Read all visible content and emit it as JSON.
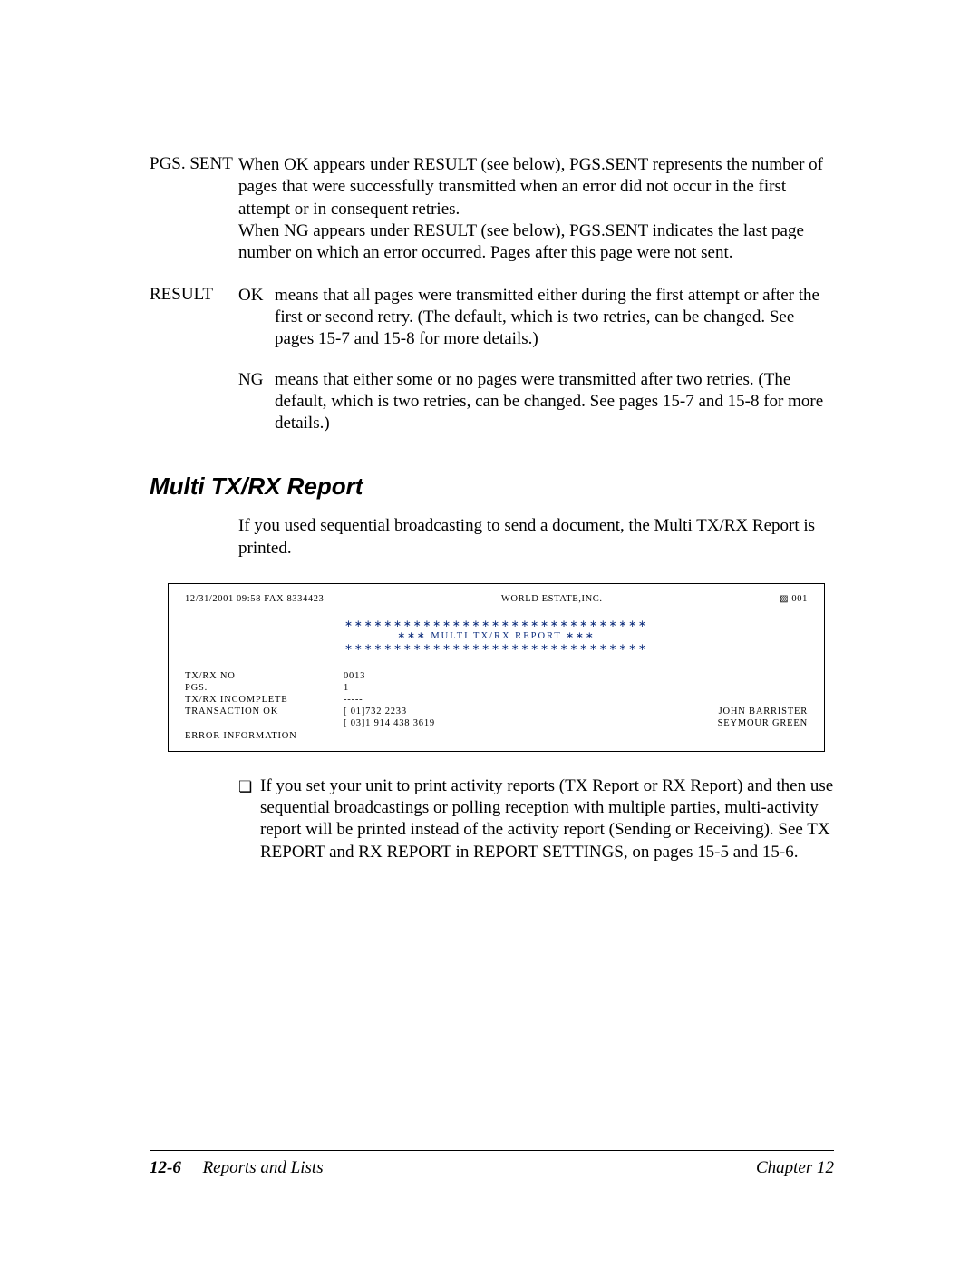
{
  "definitions": {
    "pgs_sent": {
      "term": "PGS. SENT",
      "body": "When OK appears under RESULT (see below), PGS.SENT represents the number of pages that were successfully transmitted when an error did not occur in the first attempt or in consequent retries.\nWhen NG appears under RESULT (see below), PGS.SENT indicates the last page number on which an error occurred. Pages after this page were not sent."
    },
    "result": {
      "term": "RESULT",
      "ok_tag": "OK",
      "ok_text": "means that all pages were transmitted either during the first attempt or after the first or second retry. (The default, which is two retries, can be changed. See pages 15-7 and 15-8 for more details.)",
      "ng_tag": "NG",
      "ng_text": "means that either some or no pages were transmitted after two retries. (The default, which is two retries, can be changed. See pages 15-7 and 15-8 for more details.)"
    }
  },
  "section": {
    "heading": "Multi TX/RX Report",
    "intro": "If you used sequential broadcasting to send a document, the Multi TX/RX Report is printed."
  },
  "report": {
    "header_left": "12/31/2001  09:58  FAX  8334423",
    "header_center": "WORLD ESTATE,INC.",
    "header_right_icon": "▨",
    "header_right_num": " 001",
    "stars": "∗∗∗∗∗∗∗∗∗∗∗∗∗∗∗∗∗∗∗∗∗∗∗∗∗∗∗∗∗∗∗",
    "title_line": "∗∗∗    MULTI TX/RX REPORT    ∗∗∗",
    "rows": {
      "r1_label": "TX/RX NO",
      "r1_val": "0013",
      "r2_label": "PGS.",
      "r2_val": "   1",
      "r3_label": "TX/RX INCOMPLETE",
      "r3_val": "-----",
      "r4_label": "TRANSACTION OK",
      "r4_val": "[   01]732 2233",
      "r4_name": "JOHN BARRISTER",
      "r5_label": "",
      "r5_val": "[   03]1 914 438 3619",
      "r5_name": "SEYMOUR GREEN",
      "r6_label": "ERROR INFORMATION",
      "r6_val": "-----"
    }
  },
  "note": {
    "bullet": "❏",
    "text": "If you set your unit to print activity reports (TX Report or RX Report) and then use sequential broadcastings or polling reception with multiple parties, multi-activity report will be printed instead of the activity report (Sending or Receiving). See TX REPORT and RX REPORT in REPORT SETTINGS, on pages 15-5 and 15-6."
  },
  "footer": {
    "page_num": "12-6",
    "section_label": "Reports and Lists",
    "chapter": "Chapter 12"
  }
}
